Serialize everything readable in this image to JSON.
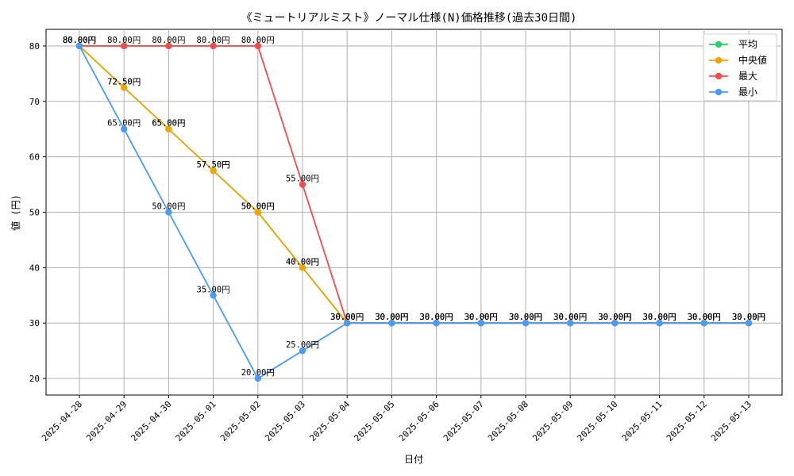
{
  "chart_data": {
    "type": "line",
    "title": "《ミュートリアルミスト》ノーマル仕様(N)価格推移(過去30日間)",
    "xlabel": "日付",
    "ylabel": "値 (円)",
    "ylim": [
      17,
      83
    ],
    "yticks": [
      20,
      30,
      40,
      50,
      60,
      70,
      80
    ],
    "grid": true,
    "legend_position": "top-right",
    "label_suffix": "円",
    "categories": [
      "2025-04-28",
      "2025-04-29",
      "2025-04-30",
      "2025-05-01",
      "2025-05-02",
      "2025-05-03",
      "2025-05-04",
      "2025-05-05",
      "2025-05-06",
      "2025-05-07",
      "2025-05-08",
      "2025-05-09",
      "2025-05-10",
      "2025-05-11",
      "2025-05-12",
      "2025-05-13"
    ],
    "series": [
      {
        "name": "平均",
        "color": "#2ecc71",
        "values": [
          80,
          72.5,
          65,
          57.5,
          50,
          40,
          30,
          30,
          30,
          30,
          30,
          30,
          30,
          30,
          30,
          30
        ]
      },
      {
        "name": "中央値",
        "color": "#f0a500",
        "values": [
          80,
          72.5,
          65,
          57.5,
          50,
          40,
          30,
          30,
          30,
          30,
          30,
          30,
          30,
          30,
          30,
          30
        ]
      },
      {
        "name": "最大",
        "color": "#f44b4b",
        "values": [
          80,
          80,
          80,
          80,
          80,
          55,
          30,
          30,
          30,
          30,
          30,
          30,
          30,
          30,
          30,
          30
        ]
      },
      {
        "name": "最小",
        "color": "#4a9bf5",
        "values": [
          80,
          65,
          50,
          35,
          20,
          25,
          30,
          30,
          30,
          30,
          30,
          30,
          30,
          30,
          30,
          30
        ]
      }
    ]
  }
}
